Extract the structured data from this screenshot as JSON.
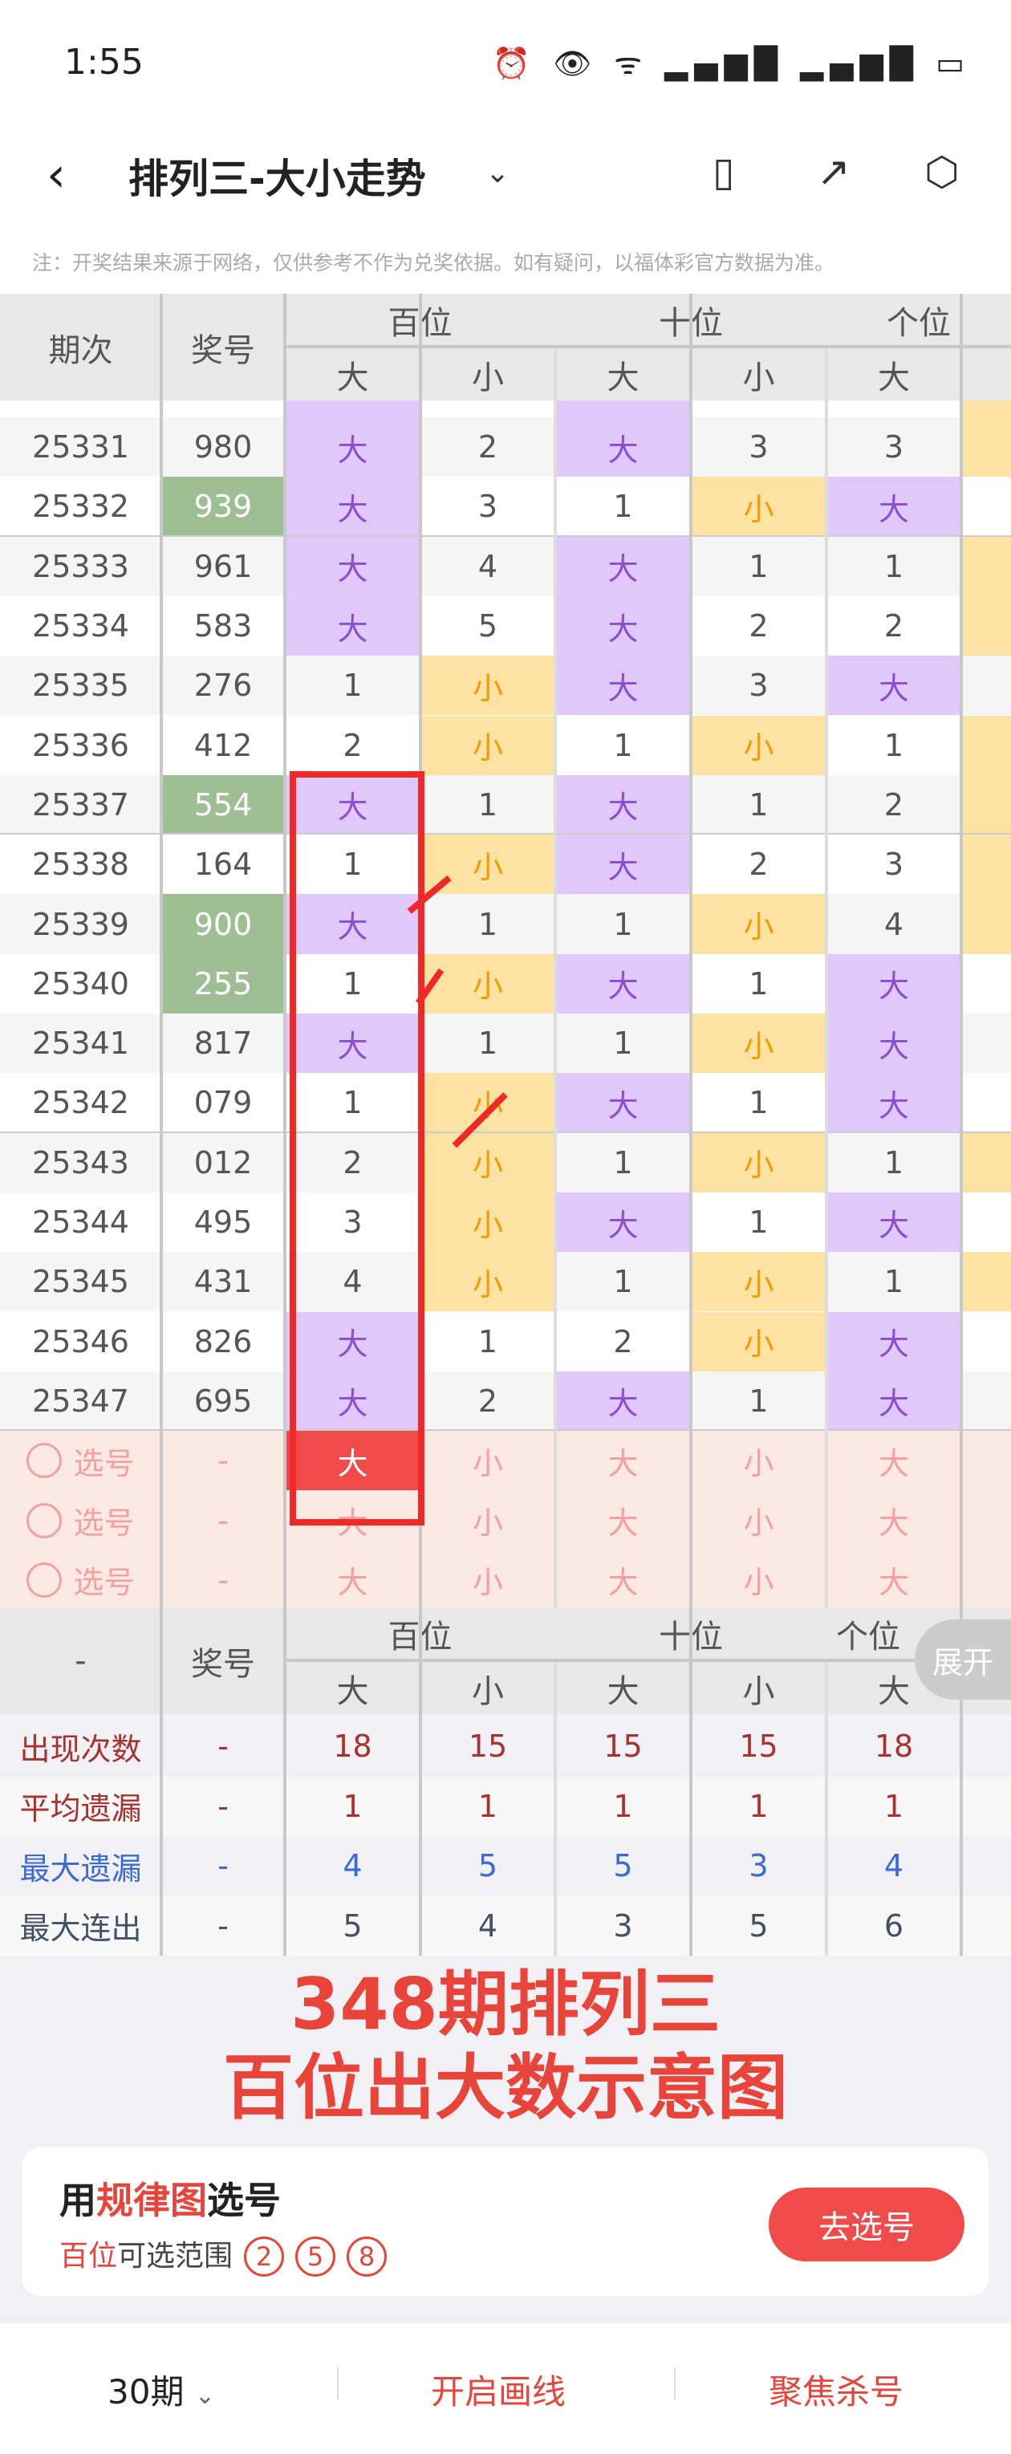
{
  "status": {
    "time": "1:55",
    "icons": [
      "alarm-icon",
      "eye-icon",
      "wifi-icon",
      "signal-icon",
      "signal-icon",
      "battery-icon"
    ]
  },
  "header": {
    "title": "排列三-大小走势",
    "icons": [
      "switch-device-icon",
      "share-icon",
      "settings-icon"
    ]
  },
  "note": "注：开奖结果来源于网络，仅供参考不作为兑奖依据。如有疑问，以福体彩官方数据为准。",
  "table": {
    "col_period": "期次",
    "col_prize": "奖号",
    "groups": [
      "百位",
      "十位",
      "个位"
    ],
    "sub": [
      "大",
      "小",
      "大",
      "小",
      "大"
    ],
    "rows": [
      {
        "period": "25331",
        "prize": "980",
        "hot": false,
        "cells": [
          "大",
          "2",
          "大",
          "3",
          "3"
        ],
        "gw_small": true
      },
      {
        "period": "25332",
        "prize": "939",
        "hot": true,
        "cells": [
          "大",
          "3",
          "1",
          "小",
          "大"
        ],
        "gw_small": false
      },
      {
        "period": "25333",
        "prize": "961",
        "hot": false,
        "cells": [
          "大",
          "4",
          "大",
          "1",
          "1"
        ],
        "gw_small": true
      },
      {
        "period": "25334",
        "prize": "583",
        "hot": false,
        "cells": [
          "大",
          "5",
          "大",
          "2",
          "2"
        ],
        "gw_small": true
      },
      {
        "period": "25335",
        "prize": "276",
        "hot": false,
        "cells": [
          "1",
          "小",
          "大",
          "3",
          "大"
        ],
        "gw_small": false
      },
      {
        "period": "25336",
        "prize": "412",
        "hot": false,
        "cells": [
          "2",
          "小",
          "1",
          "小",
          "1"
        ],
        "gw_small": true
      },
      {
        "period": "25337",
        "prize": "554",
        "hot": true,
        "cells": [
          "大",
          "1",
          "大",
          "1",
          "2"
        ],
        "gw_small": true
      },
      {
        "period": "25338",
        "prize": "164",
        "hot": false,
        "cells": [
          "1",
          "小",
          "大",
          "2",
          "3"
        ],
        "gw_small": true
      },
      {
        "period": "25339",
        "prize": "900",
        "hot": true,
        "cells": [
          "大",
          "1",
          "1",
          "小",
          "4"
        ],
        "gw_small": true
      },
      {
        "period": "25340",
        "prize": "255",
        "hot": true,
        "cells": [
          "1",
          "小",
          "大",
          "1",
          "大"
        ],
        "gw_small": false
      },
      {
        "period": "25341",
        "prize": "817",
        "hot": false,
        "cells": [
          "大",
          "1",
          "1",
          "小",
          "大"
        ],
        "gw_small": false
      },
      {
        "period": "25342",
        "prize": "079",
        "hot": false,
        "cells": [
          "1",
          "小",
          "大",
          "1",
          "大"
        ],
        "gw_small": false
      },
      {
        "period": "25343",
        "prize": "012",
        "hot": false,
        "cells": [
          "2",
          "小",
          "1",
          "小",
          "1"
        ],
        "gw_small": true
      },
      {
        "period": "25344",
        "prize": "495",
        "hot": false,
        "cells": [
          "3",
          "小",
          "大",
          "1",
          "大"
        ],
        "gw_small": false
      },
      {
        "period": "25345",
        "prize": "431",
        "hot": false,
        "cells": [
          "4",
          "小",
          "1",
          "小",
          "1"
        ],
        "gw_small": true
      },
      {
        "period": "25346",
        "prize": "826",
        "hot": false,
        "cells": [
          "大",
          "1",
          "2",
          "小",
          "大"
        ],
        "gw_small": false
      },
      {
        "period": "25347",
        "prize": "695",
        "hot": false,
        "cells": [
          "大",
          "2",
          "大",
          "1",
          "大"
        ],
        "gw_small": false
      }
    ],
    "select_rows": [
      {
        "label": "选号",
        "prize": "-",
        "cells": [
          "大",
          "小",
          "大",
          "小",
          "大"
        ],
        "selected": 0
      },
      {
        "label": "选号",
        "prize": "-",
        "cells": [
          "大",
          "小",
          "大",
          "小",
          "大"
        ],
        "selected": -1
      },
      {
        "label": "选号",
        "prize": "-",
        "cells": [
          "大",
          "小",
          "大",
          "小",
          "大"
        ],
        "selected": -1
      }
    ]
  },
  "stats": {
    "col_first": "-",
    "col_prize": "奖号",
    "expand": "展开",
    "rows": [
      {
        "label": "出现次数",
        "color": "#a8322f",
        "prize": "-",
        "values": [
          "18",
          "15",
          "15",
          "15",
          "18"
        ]
      },
      {
        "label": "平均遗漏",
        "color": "#a8322f",
        "prize": "-",
        "values": [
          "1",
          "1",
          "1",
          "1",
          "1"
        ]
      },
      {
        "label": "最大遗漏",
        "color": "#3a6ad6",
        "prize": "-",
        "values": [
          "4",
          "5",
          "5",
          "3",
          "4"
        ]
      },
      {
        "label": "最大连出",
        "color": "#445066",
        "prize": "-",
        "values": [
          "5",
          "4",
          "3",
          "5",
          "6"
        ]
      }
    ]
  },
  "overlay": {
    "line1": "348期排列三",
    "line2": "百位出大数示意图"
  },
  "card": {
    "title_pre": "用",
    "title_hl": "规律图",
    "title_post": "选号",
    "range_hl": "百位",
    "range_text": "可选范围",
    "numbers": [
      "2",
      "5",
      "8"
    ],
    "button": "去选号"
  },
  "bottom": {
    "period": "30期",
    "draw": "开启画线",
    "focus": "聚焦杀号"
  },
  "colors": {
    "big": "#e0c8fb",
    "small": "#fde3a3",
    "hot": "#9dbf93",
    "accent": "#f04a4a"
  }
}
